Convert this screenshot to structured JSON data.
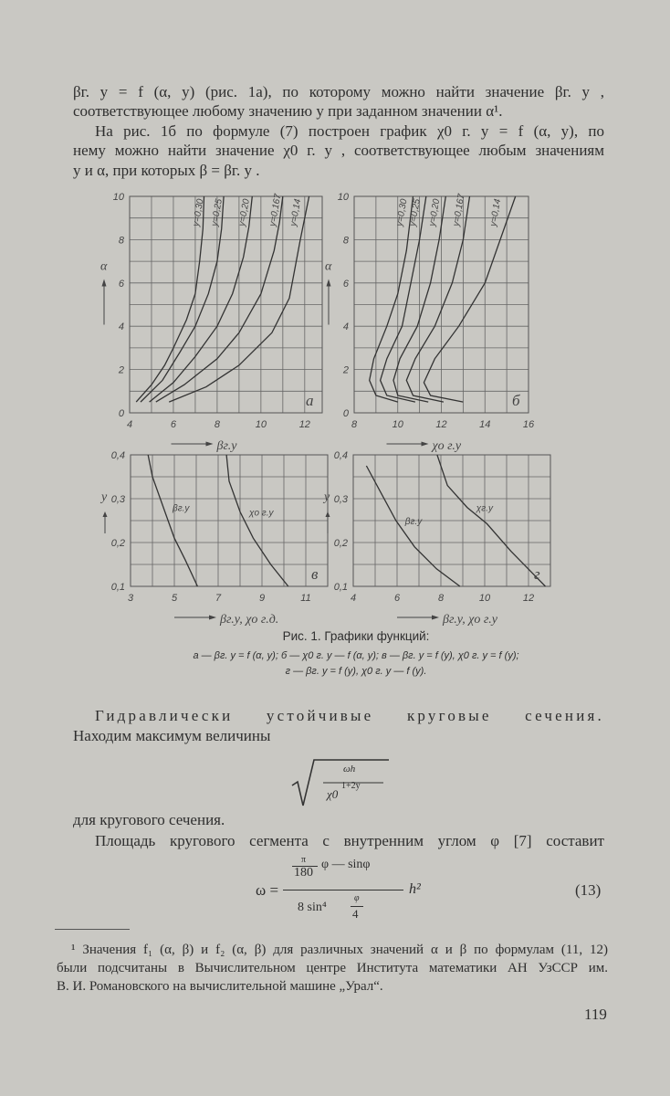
{
  "body": {
    "lines_top": [
      "βг. y = f (α, y)  (рис. 1а),  по  которому  можно  найти  значение  βг. y ,",
      "соответствующее любому значению y при заданном значении α¹.",
      "На  рис. 1б по  формуле (7) построен  график  χ0 г. y = f (α, y), по",
      "нему можно найти значение χ0 г. y , соответствующее любым значениям",
      "y и α,  при  которых  β = βг. y ."
    ],
    "caption_title": "Рис. 1. Графики функций:",
    "caption_line1": "а — βг. y = f (α, y);  б — χ0 г. y — f (α,  y);  в — βг. y = f (y),  χ0 г. y = f (y);",
    "caption_line2": "г — βг. y = f (y), χ0 г. y — f (y).",
    "heading": "Гидравлически устойчивые круговые сечения.",
    "line_find": "Находим максимум величины",
    "sqrt_num": "ωh",
    "sqrt_den": "χ0",
    "sqrt_den_exp": "1+2y",
    "line_for": "для кругового сечения.",
    "line_area": "Площадь  кругового  сегмента  с  внутренним  углом  φ  [7]  составит",
    "eq13": {
      "lhs": "ω =",
      "num_frac_top": "π",
      "num_frac_bottom": "180",
      "num_rest": "φ — sinφ",
      "den": "8  sin⁴",
      "den_frac_top": "φ",
      "den_frac_bottom": "4",
      "rhs": "h²",
      "number": "(13)"
    }
  },
  "footnote": {
    "lines": [
      "¹ Значения f₁ (α, β) и f₂ (α, β) для различных значений α и β по формулам (11, 12)",
      "были подсчитаны в Вычислительном центре Института математики АН УзССР им.",
      "В. И. Романовского на вычислительной машине „Урал“."
    ]
  },
  "page_number": "119",
  "chart_data": [
    {
      "type": "line",
      "panel": "а",
      "xlabel": "βг.у",
      "ylabel": "α",
      "xlim": [
        4,
        12.8
      ],
      "ylim": [
        0,
        10
      ],
      "xticks": [
        4,
        6,
        8,
        10,
        12
      ],
      "yticks": [
        0,
        2,
        4,
        6,
        8,
        10
      ],
      "grid": true,
      "series": [
        {
          "name": "y=0,30",
          "points": [
            [
              4.3,
              0.5
            ],
            [
              5.0,
              1.3
            ],
            [
              5.6,
              2.2
            ],
            [
              6.0,
              3
            ],
            [
              6.6,
              4.3
            ],
            [
              7.0,
              5.5
            ],
            [
              7.2,
              7
            ],
            [
              7.35,
              8.5
            ],
            [
              7.4,
              10
            ]
          ]
        },
        {
          "name": "y=0,25",
          "points": [
            [
              4.5,
              0.5
            ],
            [
              5.5,
              1.5
            ],
            [
              6.3,
              2.8
            ],
            [
              7.0,
              4
            ],
            [
              7.6,
              5.5
            ],
            [
              8.0,
              7
            ],
            [
              8.2,
              8.5
            ],
            [
              8.3,
              10
            ]
          ]
        },
        {
          "name": "y=0,20",
          "points": [
            [
              4.9,
              0.5
            ],
            [
              6.0,
              1.4
            ],
            [
              7.0,
              2.6
            ],
            [
              8.0,
              4
            ],
            [
              8.7,
              5.5
            ],
            [
              9.2,
              7.2
            ],
            [
              9.45,
              8.6
            ],
            [
              9.6,
              10
            ]
          ]
        },
        {
          "name": "y=0,167",
          "points": [
            [
              5.2,
              0.5
            ],
            [
              6.5,
              1.3
            ],
            [
              8.0,
              2.5
            ],
            [
              9.0,
              3.7
            ],
            [
              10.0,
              5.5
            ],
            [
              10.6,
              7.5
            ],
            [
              10.85,
              8.8
            ],
            [
              11.0,
              10
            ]
          ]
        },
        {
          "name": "y=0,14",
          "points": [
            [
              5.8,
              0.5
            ],
            [
              7.5,
              1.2
            ],
            [
              9.0,
              2.2
            ],
            [
              10.5,
              3.7
            ],
            [
              11.3,
              5.3
            ],
            [
              11.8,
              8
            ],
            [
              12.2,
              10
            ]
          ]
        }
      ]
    },
    {
      "type": "line",
      "panel": "б",
      "xlabel": "χо г.у",
      "ylabel": "α",
      "xlim": [
        8,
        16
      ],
      "ylim": [
        0,
        10
      ],
      "xticks": [
        8,
        10,
        12,
        14,
        16
      ],
      "yticks": [
        0,
        2,
        4,
        6,
        8,
        10
      ],
      "grid": true,
      "series": [
        {
          "name": "y=0,30",
          "points": [
            [
              10.0,
              0.5
            ],
            [
              9.0,
              0.8
            ],
            [
              8.7,
              1.5
            ],
            [
              8.9,
              2.5
            ],
            [
              9.5,
              4
            ],
            [
              10.0,
              5.5
            ],
            [
              10.4,
              7.5
            ],
            [
              10.7,
              10
            ]
          ]
        },
        {
          "name": "y=0,25",
          "points": [
            [
              10.8,
              0.5
            ],
            [
              9.5,
              0.8
            ],
            [
              9.2,
              1.5
            ],
            [
              9.5,
              2.5
            ],
            [
              10.2,
              4
            ],
            [
              10.6,
              6
            ],
            [
              11.0,
              8
            ],
            [
              11.3,
              10
            ]
          ]
        },
        {
          "name": "y=0,20",
          "points": [
            [
              11.4,
              0.5
            ],
            [
              10.0,
              0.8
            ],
            [
              9.8,
              1.5
            ],
            [
              10.1,
              2.5
            ],
            [
              10.9,
              4
            ],
            [
              11.5,
              6
            ],
            [
              11.9,
              8
            ],
            [
              12.2,
              10
            ]
          ]
        },
        {
          "name": "y=0,167",
          "points": [
            [
              12.1,
              0.5
            ],
            [
              10.7,
              0.8
            ],
            [
              10.4,
              1.5
            ],
            [
              10.8,
              2.5
            ],
            [
              11.7,
              4
            ],
            [
              12.5,
              6
            ],
            [
              13.0,
              8
            ],
            [
              13.3,
              10
            ]
          ]
        },
        {
          "name": "y=0,14",
          "points": [
            [
              13.0,
              0.5
            ],
            [
              11.5,
              0.8
            ],
            [
              11.2,
              1.4
            ],
            [
              11.7,
              2.5
            ],
            [
              12.8,
              4
            ],
            [
              14.0,
              6
            ],
            [
              14.7,
              8
            ],
            [
              15.4,
              10
            ]
          ]
        }
      ]
    },
    {
      "type": "line",
      "panel": "в",
      "xlabel": "βг.у, χо г.д.",
      "ylabel": "y",
      "xlim": [
        3,
        12
      ],
      "ylim": [
        0.1,
        0.4
      ],
      "xticks": [
        3,
        5,
        7,
        9,
        11
      ],
      "yticks": [
        0.1,
        0.2,
        0.3,
        0.4
      ],
      "ytick_labels": [
        "0,1",
        "0,2",
        "0,3",
        "0,4"
      ],
      "grid": true,
      "series": [
        {
          "name": "βг.у",
          "points": [
            [
              3.8,
              0.4
            ],
            [
              4.0,
              0.35
            ],
            [
              4.5,
              0.28
            ],
            [
              5.0,
              0.21
            ],
            [
              5.5,
              0.16
            ],
            [
              6.06,
              0.1
            ]
          ]
        },
        {
          "name": "χо г.у",
          "points": [
            [
              7.38,
              0.4
            ],
            [
              7.5,
              0.34
            ],
            [
              8.0,
              0.27
            ],
            [
              8.6,
              0.21
            ],
            [
              9.4,
              0.15
            ],
            [
              10.2,
              0.1
            ]
          ]
        }
      ]
    },
    {
      "type": "line",
      "panel": "г",
      "xlabel": "βг.у, χо г.у",
      "ylabel": "y",
      "xlim": [
        4,
        13
      ],
      "ylim": [
        0.1,
        0.4
      ],
      "xticks": [
        4,
        6,
        8,
        10,
        12
      ],
      "yticks": [
        0.1,
        0.2,
        0.3,
        0.4
      ],
      "ytick_labels": [
        "0,1",
        "0,2",
        "0,3",
        "0,4"
      ],
      "grid": true,
      "series": [
        {
          "name": "βг.у",
          "points": [
            [
              4.6,
              0.375
            ],
            [
              5.3,
              0.31
            ],
            [
              5.95,
              0.25
            ],
            [
              6.8,
              0.19
            ],
            [
              7.8,
              0.14
            ],
            [
              8.87,
              0.1
            ]
          ]
        },
        {
          "name": "χг.у",
          "points": [
            [
              7.83,
              0.4
            ],
            [
              8.3,
              0.33
            ],
            [
              9.2,
              0.28
            ],
            [
              10.1,
              0.243
            ],
            [
              11.2,
              0.18
            ],
            [
              12.77,
              0.1
            ]
          ]
        }
      ]
    }
  ]
}
